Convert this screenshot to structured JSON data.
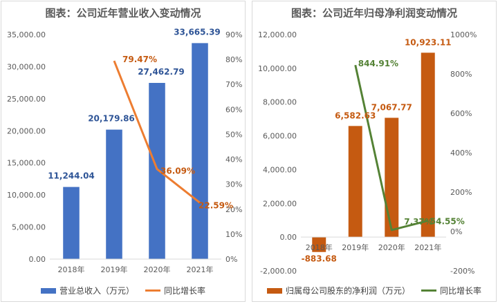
{
  "chart_data": [
    {
      "type": "bar",
      "title": "图表：公司近年营业收入变动情况",
      "categories": [
        "2018年",
        "2019年",
        "2020年",
        "2021年"
      ],
      "series": [
        {
          "name": "营业总收入（万元）",
          "kind": "bar",
          "axis": "left",
          "color": "#4472C4",
          "values": [
            11244.04,
            20179.86,
            27462.79,
            33665.39
          ],
          "labels": [
            "11,244.04",
            "20,179.86",
            "27,462.79",
            "33,665.39"
          ],
          "label_color": "#2F5597"
        },
        {
          "name": "同比增长率",
          "kind": "line",
          "axis": "right",
          "color": "#ED7D31",
          "values": [
            null,
            79.47,
            36.09,
            22.59
          ],
          "labels": [
            "",
            "79.47%",
            "36.09%",
            "22.59%"
          ],
          "label_color": "#C55A11"
        }
      ],
      "ylim_left": [
        0,
        35000
      ],
      "yticks_left": [
        "0.00",
        "5,000.00",
        "10,000.00",
        "15,000.00",
        "20,000.00",
        "25,000.00",
        "30,000.00",
        "35,000.00"
      ],
      "ylim_right": [
        0,
        90
      ],
      "yticks_right": [
        "0%",
        "10%",
        "20%",
        "30%",
        "40%",
        "50%",
        "60%",
        "70%",
        "80%",
        "90%"
      ],
      "grid": false,
      "legend": "bottom"
    },
    {
      "type": "bar",
      "title": "图表：公司近年归母净利润变动情况",
      "categories": [
        "2018年",
        "2019年",
        "2020年",
        "2021年"
      ],
      "series": [
        {
          "name": "归属母公司股东的净利润（万元）",
          "kind": "bar",
          "axis": "left",
          "color": "#C55A11",
          "values": [
            -883.68,
            6582.63,
            7067.77,
            10923.11
          ],
          "labels": [
            "-883.68",
            "6,582.63",
            "7,067.77",
            "10,923.11"
          ],
          "label_color": "#C55A11"
        },
        {
          "name": "同比增长率",
          "kind": "line",
          "axis": "right",
          "color": "#548235",
          "values": [
            null,
            844.91,
            7.37,
            54.55
          ],
          "labels": [
            "",
            "844.91%",
            "7.37%",
            "54.55%"
          ],
          "label_color": "#548235"
        }
      ],
      "ylim_left": [
        -2000,
        12000
      ],
      "yticks_left": [
        "-2,000.00",
        "0.00",
        "2,000.00",
        "4,000.00",
        "6,000.00",
        "8,000.00",
        "10,000.00",
        "12,000.00"
      ],
      "ylim_right": [
        -200,
        1000
      ],
      "yticks_right": [
        "-200%",
        "0%",
        "200%",
        "400%",
        "600%",
        "800%",
        "1000%"
      ],
      "grid": false,
      "legend": "bottom"
    }
  ]
}
